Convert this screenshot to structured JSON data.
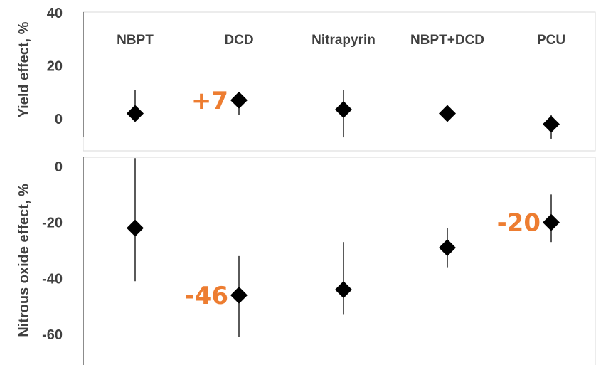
{
  "chart_data": [
    {
      "type": "scatter",
      "ylabel": "Yield effect, %",
      "ylim": [
        -7,
        40
      ],
      "yticks": [
        0,
        20,
        40
      ],
      "categories": [
        "NBPT",
        "DCD",
        "Nitrapyrin",
        "NBPT+DCD",
        "PCU"
      ],
      "values": [
        2,
        7,
        3.5,
        2,
        -2
      ],
      "error_low": [
        0,
        1.5,
        -7,
        1.5,
        -7.5
      ],
      "error_high": [
        11,
        9,
        11,
        2,
        1.5
      ],
      "annotations": [
        {
          "text": "+7",
          "category": "DCD"
        }
      ],
      "marker": "diamond",
      "grid": false
    },
    {
      "type": "scatter",
      "ylabel": "Nitrous oxide effect, %",
      "ylim": [
        -71,
        3
      ],
      "yticks": [
        0,
        -20,
        -40,
        -60
      ],
      "categories": [
        "NBPT",
        "DCD",
        "Nitrapyrin",
        "NBPT+DCD",
        "PCU"
      ],
      "values": [
        -22,
        -46,
        -44,
        -29,
        -20
      ],
      "error_low": [
        -41,
        -61,
        -53,
        -36,
        -27
      ],
      "error_high": [
        3,
        -32,
        -27,
        -22,
        -10
      ],
      "annotations": [
        {
          "text": "-46",
          "category": "DCD"
        },
        {
          "text": "-20",
          "category": "PCU"
        }
      ],
      "marker": "diamond",
      "grid": false
    }
  ],
  "colors": {
    "marker": "#000000",
    "axis": "#404040",
    "panel_border": "#d9d9d9",
    "annotation": "#ed7d31"
  }
}
